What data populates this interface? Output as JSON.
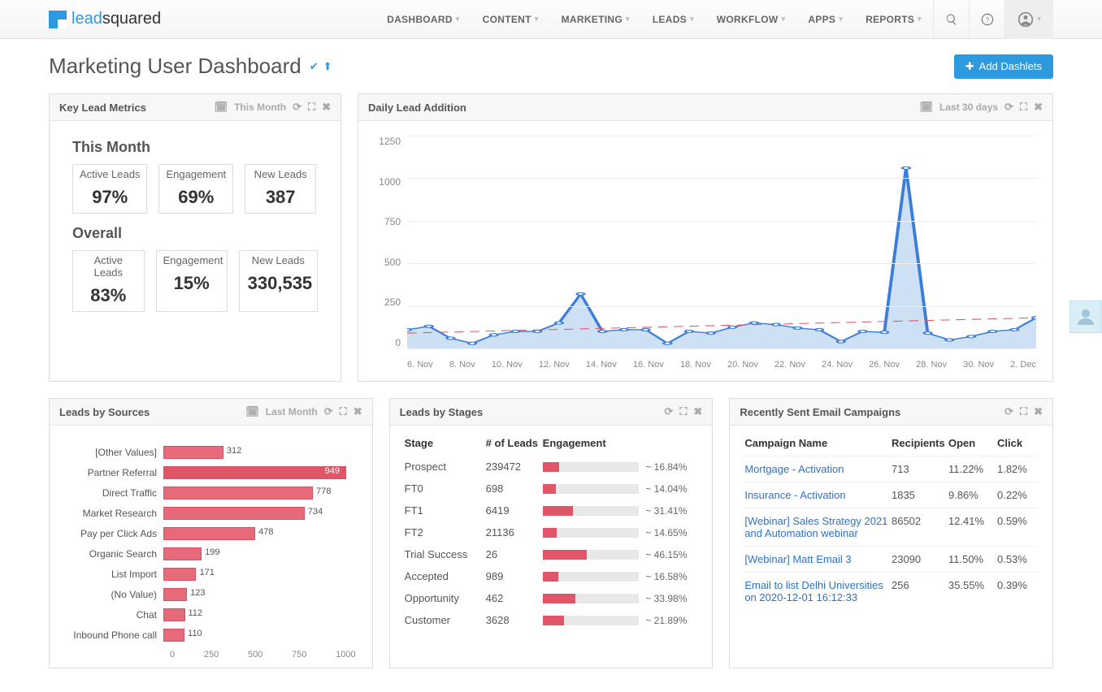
{
  "nav": [
    "DASHBOARD",
    "CONTENT",
    "MARKETING",
    "LEADS",
    "WORKFLOW",
    "APPS",
    "REPORTS"
  ],
  "page": {
    "title": "Marketing User Dashboard",
    "add_btn": "Add Dashlets"
  },
  "key_metrics": {
    "title": "Key Lead Metrics",
    "period": "This Month",
    "sections": [
      {
        "name": "This Month",
        "boxes": [
          {
            "label": "Active Leads",
            "val": "97%"
          },
          {
            "label": "Engagement",
            "val": "69%"
          },
          {
            "label": "New Leads",
            "val": "387"
          }
        ]
      },
      {
        "name": "Overall",
        "boxes": [
          {
            "label": "Active Leads",
            "val": "83%"
          },
          {
            "label": "Engagement",
            "val": "15%"
          },
          {
            "label": "New Leads",
            "val": "330,535"
          }
        ]
      }
    ]
  },
  "daily_chart": {
    "title": "Daily Lead Addition",
    "period": "Last 30 days",
    "ylim": [
      0,
      1250
    ],
    "yticks": [
      "1250",
      "1000",
      "750",
      "500",
      "250",
      "0"
    ],
    "xlabels": [
      "6. Nov",
      "8. Nov",
      "10. Nov",
      "12. Nov",
      "14. Nov",
      "16. Nov",
      "18. Nov",
      "20. Nov",
      "22. Nov",
      "24. Nov",
      "26. Nov",
      "28. Nov",
      "30. Nov",
      "2. Dec"
    ],
    "values": [
      110,
      130,
      60,
      30,
      80,
      100,
      100,
      150,
      320,
      100,
      110,
      110,
      30,
      100,
      90,
      125,
      150,
      140,
      120,
      110,
      40,
      100,
      95,
      1060,
      90,
      50,
      70,
      100,
      110,
      180
    ],
    "line_color": "#3b7dd8",
    "fill_color": "#b8d3ef",
    "trend_color": "#e05568"
  },
  "sources": {
    "title": "Leads by Sources",
    "period": "Last Month",
    "max": 1000,
    "xticks": [
      "0",
      "250",
      "500",
      "750",
      "1000"
    ],
    "rows": [
      {
        "label": "[Other Values]",
        "val": 312
      },
      {
        "label": "Partner Referral",
        "val": 949,
        "highlight": true
      },
      {
        "label": "Direct Traffic",
        "val": 778
      },
      {
        "label": "Market Research",
        "val": 734
      },
      {
        "label": "Pay per Click Ads",
        "val": 478
      },
      {
        "label": "Organic Search",
        "val": 199
      },
      {
        "label": "List Import",
        "val": 171
      },
      {
        "label": "(No Value)",
        "val": 123
      },
      {
        "label": "Chat",
        "val": 112
      },
      {
        "label": "Inbound Phone call",
        "val": 110
      }
    ],
    "bar_color": "#e76a7a"
  },
  "stages": {
    "title": "Leads by Stages",
    "cols": [
      "Stage",
      "# of Leads",
      "Engagement"
    ],
    "rows": [
      {
        "stage": "Prospect",
        "n": "239472",
        "pct": 16.84
      },
      {
        "stage": "FT0",
        "n": "698",
        "pct": 14.04
      },
      {
        "stage": "FT1",
        "n": "6419",
        "pct": 31.41
      },
      {
        "stage": "FT2",
        "n": "21136",
        "pct": 14.65
      },
      {
        "stage": "Trial Success",
        "n": "26",
        "pct": 46.15
      },
      {
        "stage": "Accepted",
        "n": "989",
        "pct": 16.58
      },
      {
        "stage": "Opportunity",
        "n": "462",
        "pct": 33.98
      },
      {
        "stage": "Customer",
        "n": "3628",
        "pct": 21.89
      }
    ],
    "bar_color": "#e05568"
  },
  "campaigns": {
    "title": "Recently Sent Email Campaigns",
    "cols": [
      "Campaign Name",
      "Recipients",
      "Open",
      "Click"
    ],
    "rows": [
      {
        "name": "Mortgage - Activation",
        "r": "713",
        "o": "11.22%",
        "c": "1.82%"
      },
      {
        "name": "Insurance - Activation",
        "r": "1835",
        "o": "9.86%",
        "c": "0.22%"
      },
      {
        "name": "[Webinar] Sales Strategy 2021 and Automation webinar",
        "r": "86502",
        "o": "12.41%",
        "c": "0.59%"
      },
      {
        "name": "[Webinar] Matt Email 3",
        "r": "23090",
        "o": "11.50%",
        "c": "0.53%"
      },
      {
        "name": "Email to list Delhi Universities on 2020-12-01 16:12:33",
        "r": "256",
        "o": "35.55%",
        "c": "0.39%"
      }
    ]
  }
}
